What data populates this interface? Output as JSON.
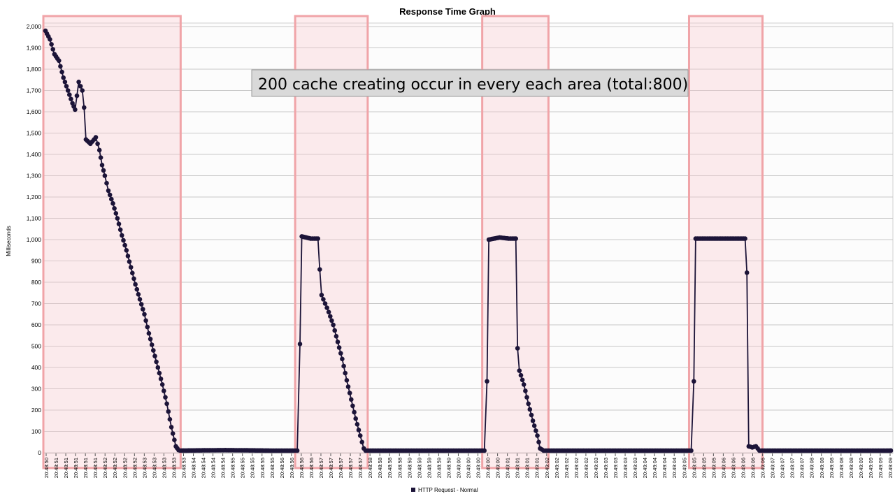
{
  "chart_data": {
    "type": "scatter",
    "title": "Response Time Graph",
    "xlabel": "",
    "ylabel": "Milliseconds",
    "ylim": [
      0,
      2000
    ],
    "grid": true,
    "legend_position": "bottom-center",
    "y_ticks": [
      "0",
      "100",
      "200",
      "300",
      "400",
      "500",
      "600",
      "700",
      "800",
      "900",
      "1,000",
      "1,100",
      "1,200",
      "1,300",
      "1,400",
      "1,500",
      "1,600",
      "1,700",
      "1,800",
      "1,900",
      "2,000"
    ],
    "x_ticks": [
      "20:48:50",
      "20:48:51",
      "20:48:51",
      "20:48:51",
      "20:48:51",
      "20:48:51",
      "20:48:52",
      "20:48:52",
      "20:48:52",
      "20:48:52",
      "20:48:53",
      "20:48:53",
      "20:48:53",
      "20:48:53",
      "20:48:53",
      "20:48:54",
      "20:48:54",
      "20:48:54",
      "20:48:54",
      "20:48:55",
      "20:48:55",
      "20:48:55",
      "20:48:55",
      "20:48:55",
      "20:48:56",
      "20:48:56",
      "20:48:56",
      "20:48:56",
      "20:48:57",
      "20:48:57",
      "20:48:57",
      "20:48:57",
      "20:48:57",
      "20:48:58",
      "20:48:58",
      "20:48:58",
      "20:48:58",
      "20:48:59",
      "20:48:59",
      "20:48:59",
      "20:48:59",
      "20:48:59",
      "20:49:00",
      "20:49:00",
      "20:49:00",
      "20:49:00",
      "20:49:00",
      "20:49:01",
      "20:49:01",
      "20:49:01",
      "20:49:01",
      "20:49:02",
      "20:49:02",
      "20:49:02",
      "20:49:02",
      "20:49:02",
      "20:49:03",
      "20:49:03",
      "20:49:03",
      "20:49:03",
      "20:49:03",
      "20:49:04",
      "20:49:04",
      "20:49:04",
      "20:49:04",
      "20:49:05",
      "20:49:05",
      "20:49:05",
      "20:49:05",
      "20:49:06",
      "20:49:06",
      "20:49:06",
      "20:49:06",
      "20:49:06",
      "20:49:07",
      "20:49:07",
      "20:49:07",
      "20:49:07",
      "20:49:08",
      "20:49:08",
      "20:49:08",
      "20:49:08",
      "20:49:08",
      "20:49:09",
      "20:49:09",
      "20:49:09",
      "20:49:09"
    ],
    "series": [
      {
        "name": "HTTP Request - Normal",
        "color": "#1c1438",
        "keypoints": [
          [
            0,
            1980
          ],
          [
            0.5,
            1940
          ],
          [
            1,
            1870
          ],
          [
            1.5,
            1840
          ],
          [
            2,
            1760
          ],
          [
            2.5,
            1700
          ],
          [
            3,
            1640
          ],
          [
            3.3,
            1610
          ],
          [
            3.7,
            1740
          ],
          [
            4.1,
            1700
          ],
          [
            4.3,
            1620
          ],
          [
            4.5,
            1470
          ],
          [
            5,
            1450
          ],
          [
            5.6,
            1480
          ],
          [
            6,
            1420
          ],
          [
            6.3,
            1350
          ],
          [
            6.6,
            1300
          ],
          [
            7,
            1230
          ],
          [
            7.5,
            1170
          ],
          [
            8,
            1100
          ],
          [
            8.5,
            1020
          ],
          [
            9,
            950
          ],
          [
            9.5,
            870
          ],
          [
            10,
            790
          ],
          [
            10.5,
            720
          ],
          [
            11,
            650
          ],
          [
            11.5,
            560
          ],
          [
            12,
            480
          ],
          [
            12.5,
            400
          ],
          [
            13,
            320
          ],
          [
            13.5,
            230
          ],
          [
            14,
            120
          ],
          [
            14.5,
            30
          ],
          [
            14.8,
            12
          ],
          [
            15,
            10
          ],
          [
            20,
            12
          ],
          [
            25,
            10
          ],
          [
            28,
            10
          ],
          [
            28.3,
            510
          ],
          [
            28.5,
            1015
          ],
          [
            29.5,
            1005
          ],
          [
            30.3,
            1005
          ],
          [
            30.5,
            860
          ],
          [
            30.7,
            740
          ],
          [
            31.5,
            660
          ],
          [
            32,
            600
          ],
          [
            32.5,
            520
          ],
          [
            33,
            440
          ],
          [
            33.5,
            340
          ],
          [
            34,
            250
          ],
          [
            34.5,
            160
          ],
          [
            35,
            80
          ],
          [
            35.4,
            20
          ],
          [
            35.6,
            10
          ],
          [
            40,
            10
          ],
          [
            45,
            10
          ],
          [
            48.8,
            10
          ],
          [
            49.1,
            335
          ],
          [
            49.3,
            1000
          ],
          [
            50.5,
            1010
          ],
          [
            51.5,
            1005
          ],
          [
            52.3,
            1005
          ],
          [
            52.5,
            490
          ],
          [
            52.7,
            385
          ],
          [
            53.2,
            320
          ],
          [
            53.7,
            230
          ],
          [
            54.2,
            150
          ],
          [
            54.7,
            80
          ],
          [
            55,
            20
          ],
          [
            55.4,
            10
          ],
          [
            60,
            10
          ],
          [
            65,
            10
          ],
          [
            70,
            10
          ],
          [
            71.8,
            10
          ],
          [
            72.1,
            335
          ],
          [
            72.3,
            1005
          ],
          [
            74,
            1005
          ],
          [
            76,
            1005
          ],
          [
            77.8,
            1005
          ],
          [
            78,
            845
          ],
          [
            78.2,
            30
          ],
          [
            78.6,
            25
          ],
          [
            79,
            30
          ],
          [
            79.4,
            10
          ],
          [
            83,
            10
          ],
          [
            88,
            10
          ],
          [
            93,
            10
          ],
          [
            94,
            10
          ]
        ]
      }
    ],
    "highlight_regions": [
      {
        "x_start": 0,
        "x_end": 14.8
      },
      {
        "x_start": 28,
        "x_end": 35.6
      },
      {
        "x_start": 48.8,
        "x_end": 55.7
      },
      {
        "x_start": 71.8,
        "x_end": 79.5
      }
    ],
    "annotations": [
      {
        "text": "200 cache creating occur in every each area (total:800)"
      }
    ],
    "x_range": [
      0,
      94
    ]
  }
}
